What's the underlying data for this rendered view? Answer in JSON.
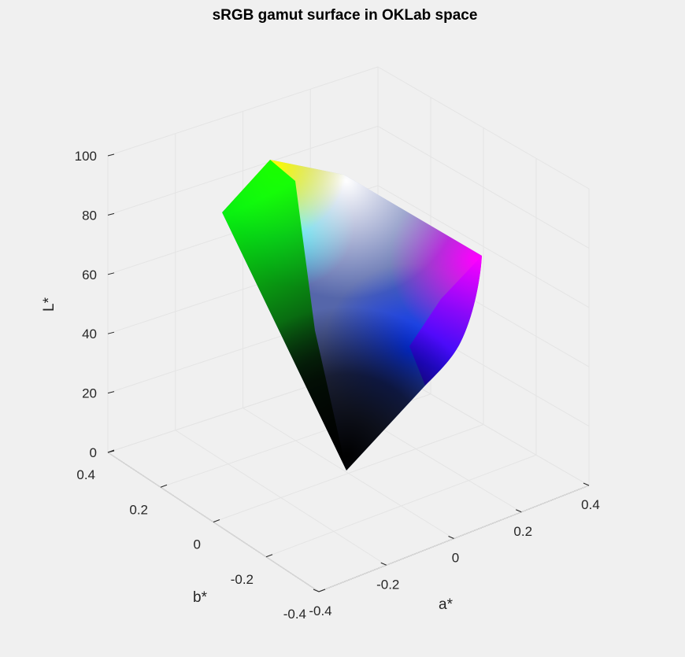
{
  "chart_data": {
    "type": "surface",
    "title": "sRGB gamut surface in OKLab space",
    "xlabel": "a*",
    "ylabel": "b*",
    "zlabel": "L*",
    "xlim": [
      -0.4,
      0.4
    ],
    "ylim": [
      -0.4,
      0.4
    ],
    "zlim": [
      0,
      100
    ],
    "x_ticks": [
      "-0.4",
      "-0.2",
      "0",
      "0.2",
      "0.4"
    ],
    "y_ticks": [
      "-0.4",
      "-0.2",
      "0",
      "0.2",
      "0.4"
    ],
    "z_ticks": [
      "0",
      "20",
      "40",
      "60",
      "80",
      "100"
    ],
    "grid": true,
    "vertices": {
      "black": [
        0.0,
        0.0,
        0
      ],
      "green": [
        -0.23,
        0.18,
        86.6
      ],
      "yellow": [
        -0.07,
        0.2,
        96.8
      ],
      "white": [
        0.0,
        0.0,
        100
      ],
      "magenta": [
        0.28,
        -0.17,
        70.2
      ],
      "blue": [
        -0.03,
        -0.31,
        45.2
      ],
      "cyan": [
        -0.15,
        -0.04,
        90.5
      ]
    },
    "colors": {
      "black": "#000000",
      "green": "#00ff00",
      "yellow": "#ffff00",
      "white": "#ffffff",
      "magenta": "#ff00ff",
      "blue": "#0000ff",
      "cyan": "#00ffff"
    }
  }
}
